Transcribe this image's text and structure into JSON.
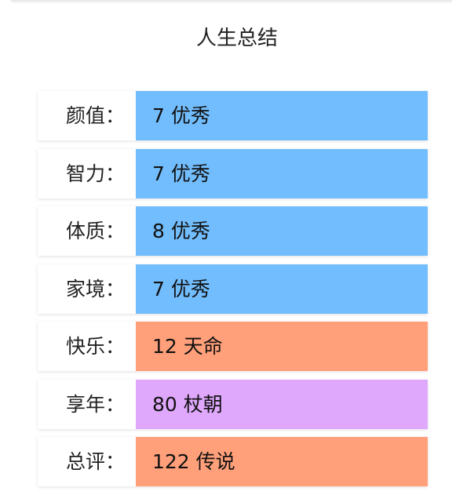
{
  "title": "人生总结",
  "colors": {
    "excellent": "#72bdfd",
    "fate": "#ffa07a",
    "purple": "#e0a8fd"
  },
  "rows": [
    {
      "label": "颜值：",
      "value": "7 优秀",
      "color": "#72bdfd"
    },
    {
      "label": "智力：",
      "value": "7 优秀",
      "color": "#72bdfd"
    },
    {
      "label": "体质：",
      "value": "8 优秀",
      "color": "#72bdfd"
    },
    {
      "label": "家境：",
      "value": "7 优秀",
      "color": "#72bdfd"
    },
    {
      "label": "快乐：",
      "value": "12 天命",
      "color": "#ffa07a"
    },
    {
      "label": "享年：",
      "value": "80 杖朝",
      "color": "#e0a8fd"
    },
    {
      "label": "总评：",
      "value": "122 传说",
      "color": "#ffa07a"
    }
  ]
}
